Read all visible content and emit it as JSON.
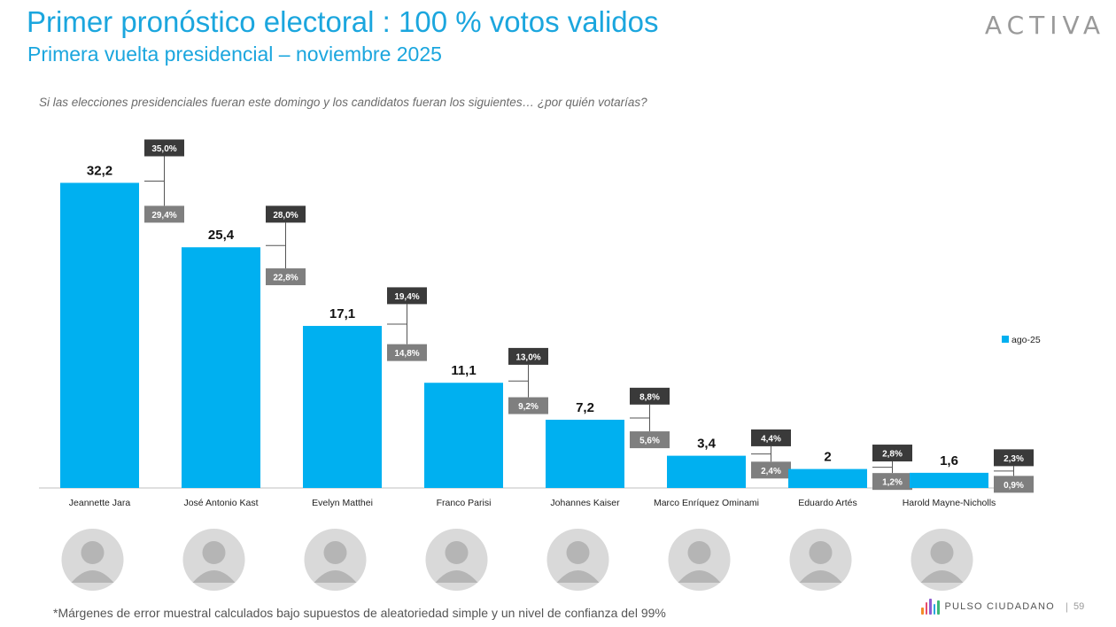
{
  "header": {
    "title": "Primer pronóstico electoral : 100 % votos validos",
    "subtitle": "Primera vuelta presidencial – noviembre 2025",
    "brand": "ACTIVA"
  },
  "question": "Si las elecciones presidenciales fueran este domingo y los candidatos fueran los siguientes… ¿por quién votarías?",
  "chart_data": {
    "type": "bar",
    "categories": [
      "Jeannette Jara",
      "José Antonio Kast",
      "Evelyn Matthei",
      "Franco Parisi",
      "Johannes Kaiser",
      "Marco Enríquez Ominami",
      "Eduardo Artés",
      "Harold Mayne-Nicholls"
    ],
    "series": [
      {
        "name": "ago-25",
        "values": [
          32.2,
          25.4,
          17.1,
          11.1,
          7.2,
          3.4,
          2,
          1.6
        ],
        "value_labels": [
          "32,2",
          "25,4",
          "17,1",
          "11,1",
          "7,2",
          "3,4",
          "2",
          "1,6"
        ],
        "upper": [
          35.0,
          28.0,
          19.4,
          13.0,
          8.8,
          4.4,
          2.8,
          2.3
        ],
        "upper_labels": [
          "35,0%",
          "28,0%",
          "19,4%",
          "13,0%",
          "8,8%",
          "4,4%",
          "2,8%",
          "2,3%"
        ],
        "lower": [
          29.4,
          22.8,
          14.8,
          9.2,
          5.6,
          2.4,
          1.2,
          0.9
        ],
        "lower_labels": [
          "29,4%",
          "22,8%",
          "14,8%",
          "9,2%",
          "5,6%",
          "2,4%",
          "1,2%",
          "0,9%"
        ]
      }
    ],
    "legend": "right",
    "ylim": [
      0,
      36
    ],
    "grid": false,
    "colors": {
      "bar": "#00b0f0",
      "upper_box": "#3a3a3a",
      "lower_box": "#7f7f7f"
    }
  },
  "footer": {
    "footnote": "*Márgenes de error muestral calculados bajo supuestos de aleatoriedad simple y un nivel de confianza del 99%",
    "logo_name": "PULSO CIUDADANO",
    "separator": "|",
    "page_number": "59"
  }
}
